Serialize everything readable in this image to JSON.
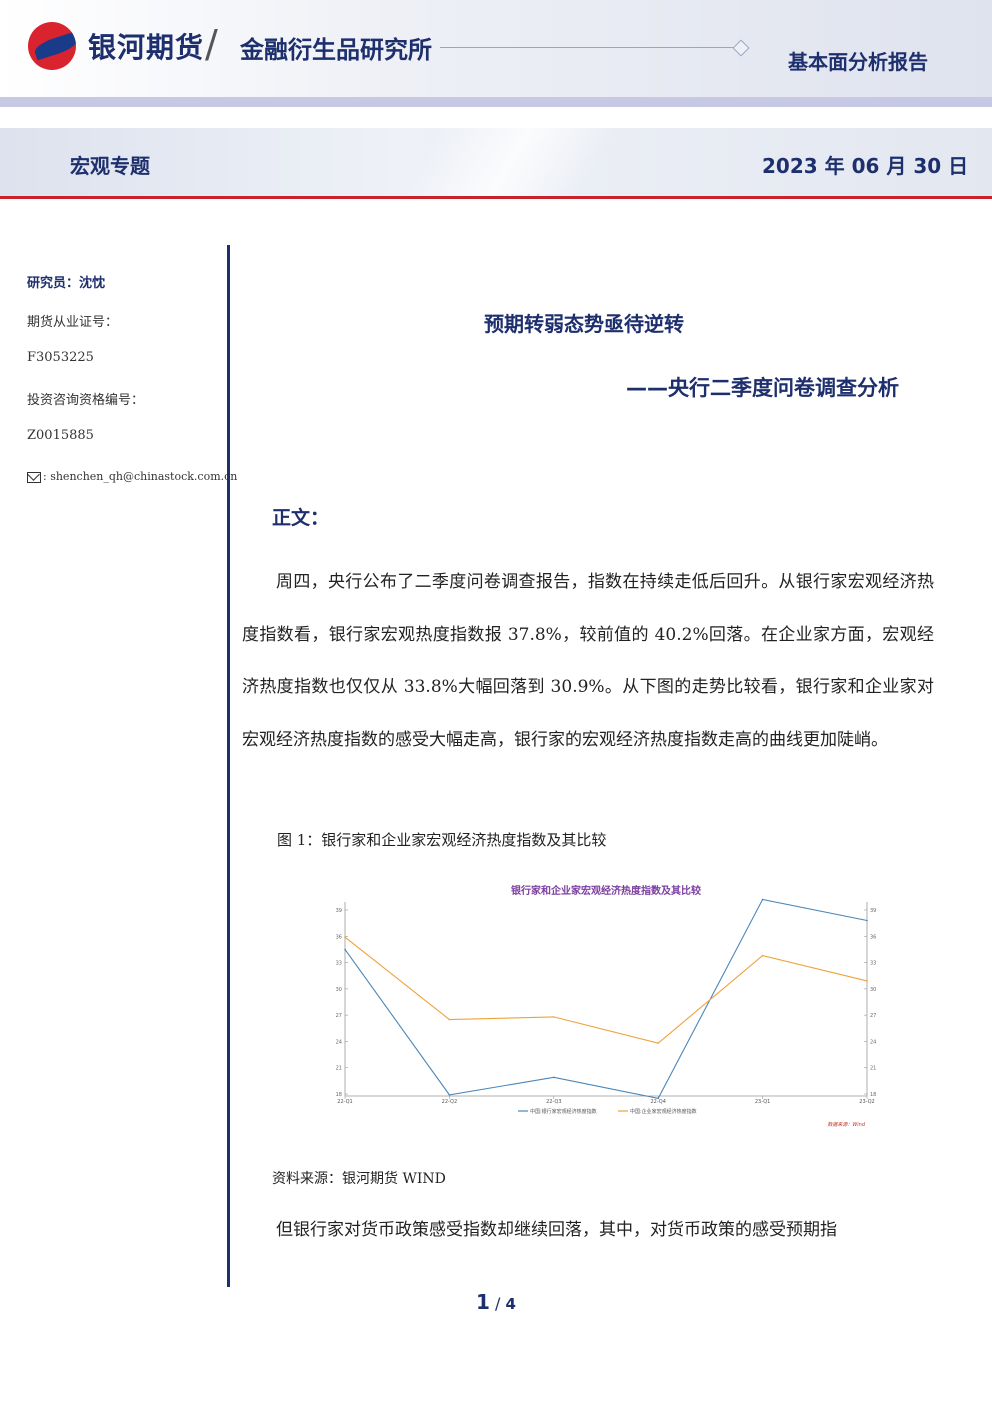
{
  "header": {
    "company": "银河期货",
    "institute": "金融衍生品研究所",
    "report_type": "基本面分析报告",
    "section": "宏观专题",
    "date": "2023 年 06 月 30 日"
  },
  "sidebar": {
    "researcher": "研究员：沈忱",
    "futures_cert_label": "期货从业证号：",
    "futures_cert_no": "F3053225",
    "invest_cert_label": "投资咨询资格编号：",
    "invest_cert_no": "Z0015885",
    "email": "shenchen_qh@chinastock.com.cn"
  },
  "article": {
    "title": "预期转弱态势亟待逆转",
    "subtitle": "——央行二季度问卷调查分析",
    "body_heading": "正文：",
    "paragraph1": "周四，央行公布了二季度问卷调查报告，指数在持续走低后回升。从银行家宏观经济热度指数看，银行家宏观热度指数报 37.8%，较前值的 40.2%回落。在企业家方面，宏观经济热度指数也仅仅从 33.8%大幅回落到 30.9%。从下图的走势比较看，银行家和企业家对宏观经济热度指数的感受大幅走高，银行家的宏观经济热度指数走高的曲线更加陡峭。",
    "figure_caption": "图 1：银行家和企业家宏观经济热度指数及其比较",
    "source": "资料来源：银河期货 WIND",
    "paragraph2": "但银行家对货币政策感受指数却继续回落，其中，对货币政策的感受预期指"
  },
  "page": {
    "current": "1",
    "separator": "/",
    "total": "4"
  },
  "chart_data": {
    "type": "line",
    "title": "银行家和企业家宏观经济热度指数及其比较",
    "categories": [
      "22-Q1",
      "22-Q2",
      "22-Q3",
      "22-Q4",
      "23-Q1",
      "23-Q2"
    ],
    "series": [
      {
        "name": "中国:银行家宏观经济热度指数",
        "color": "#4a86b8",
        "values": [
          34.5,
          17.9,
          19.9,
          17.5,
          40.2,
          37.8
        ]
      },
      {
        "name": "中国:企业家宏观经济热度指数",
        "color": "#f0a13a",
        "values": [
          35.9,
          26.5,
          26.8,
          23.8,
          33.8,
          30.9
        ]
      }
    ],
    "ylim": [
      18,
      39
    ],
    "yticks": [
      "18",
      "21",
      "24",
      "27",
      "30",
      "33",
      "36",
      "39"
    ],
    "legend": "bottom",
    "source_note": "数据来源：Wind",
    "grid": false
  }
}
